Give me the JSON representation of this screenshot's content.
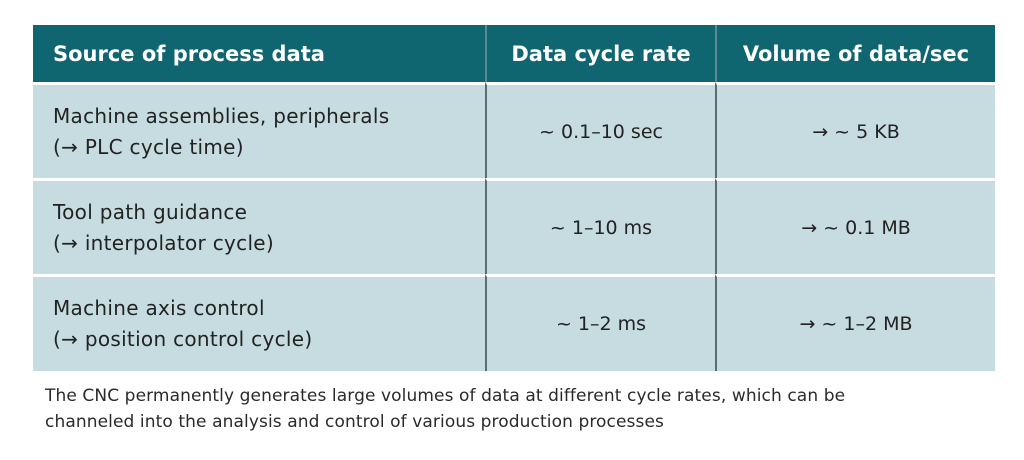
{
  "table": {
    "headers": [
      "Source of process data",
      "Data cycle rate",
      "Volume of data/sec"
    ],
    "rows": [
      {
        "source_line1": "Machine assemblies, peripherals",
        "source_line2": "(→ PLC cycle time)",
        "cycle_rate": "~ 0.1–10 sec",
        "volume": "→ ~ 5 KB"
      },
      {
        "source_line1": "Tool path guidance",
        "source_line2": "(→ interpolator cycle)",
        "cycle_rate": "~ 1–10 ms",
        "volume": "→ ~ 0.1 MB"
      },
      {
        "source_line1": "Machine axis control",
        "source_line2": "(→ position control cycle)",
        "cycle_rate": "~ 1–2 ms",
        "volume": "→ ~ 1–2 MB"
      }
    ]
  },
  "caption": {
    "line1": "The CNC permanently generates large volumes of data at different cycle rates, which can be",
    "line2": "channeled into the analysis and control of various production processes"
  },
  "colors": {
    "header_bg": "#0f6670",
    "row_bg": "#c7dce1",
    "header_text": "#ffffff",
    "body_text": "#222222"
  }
}
